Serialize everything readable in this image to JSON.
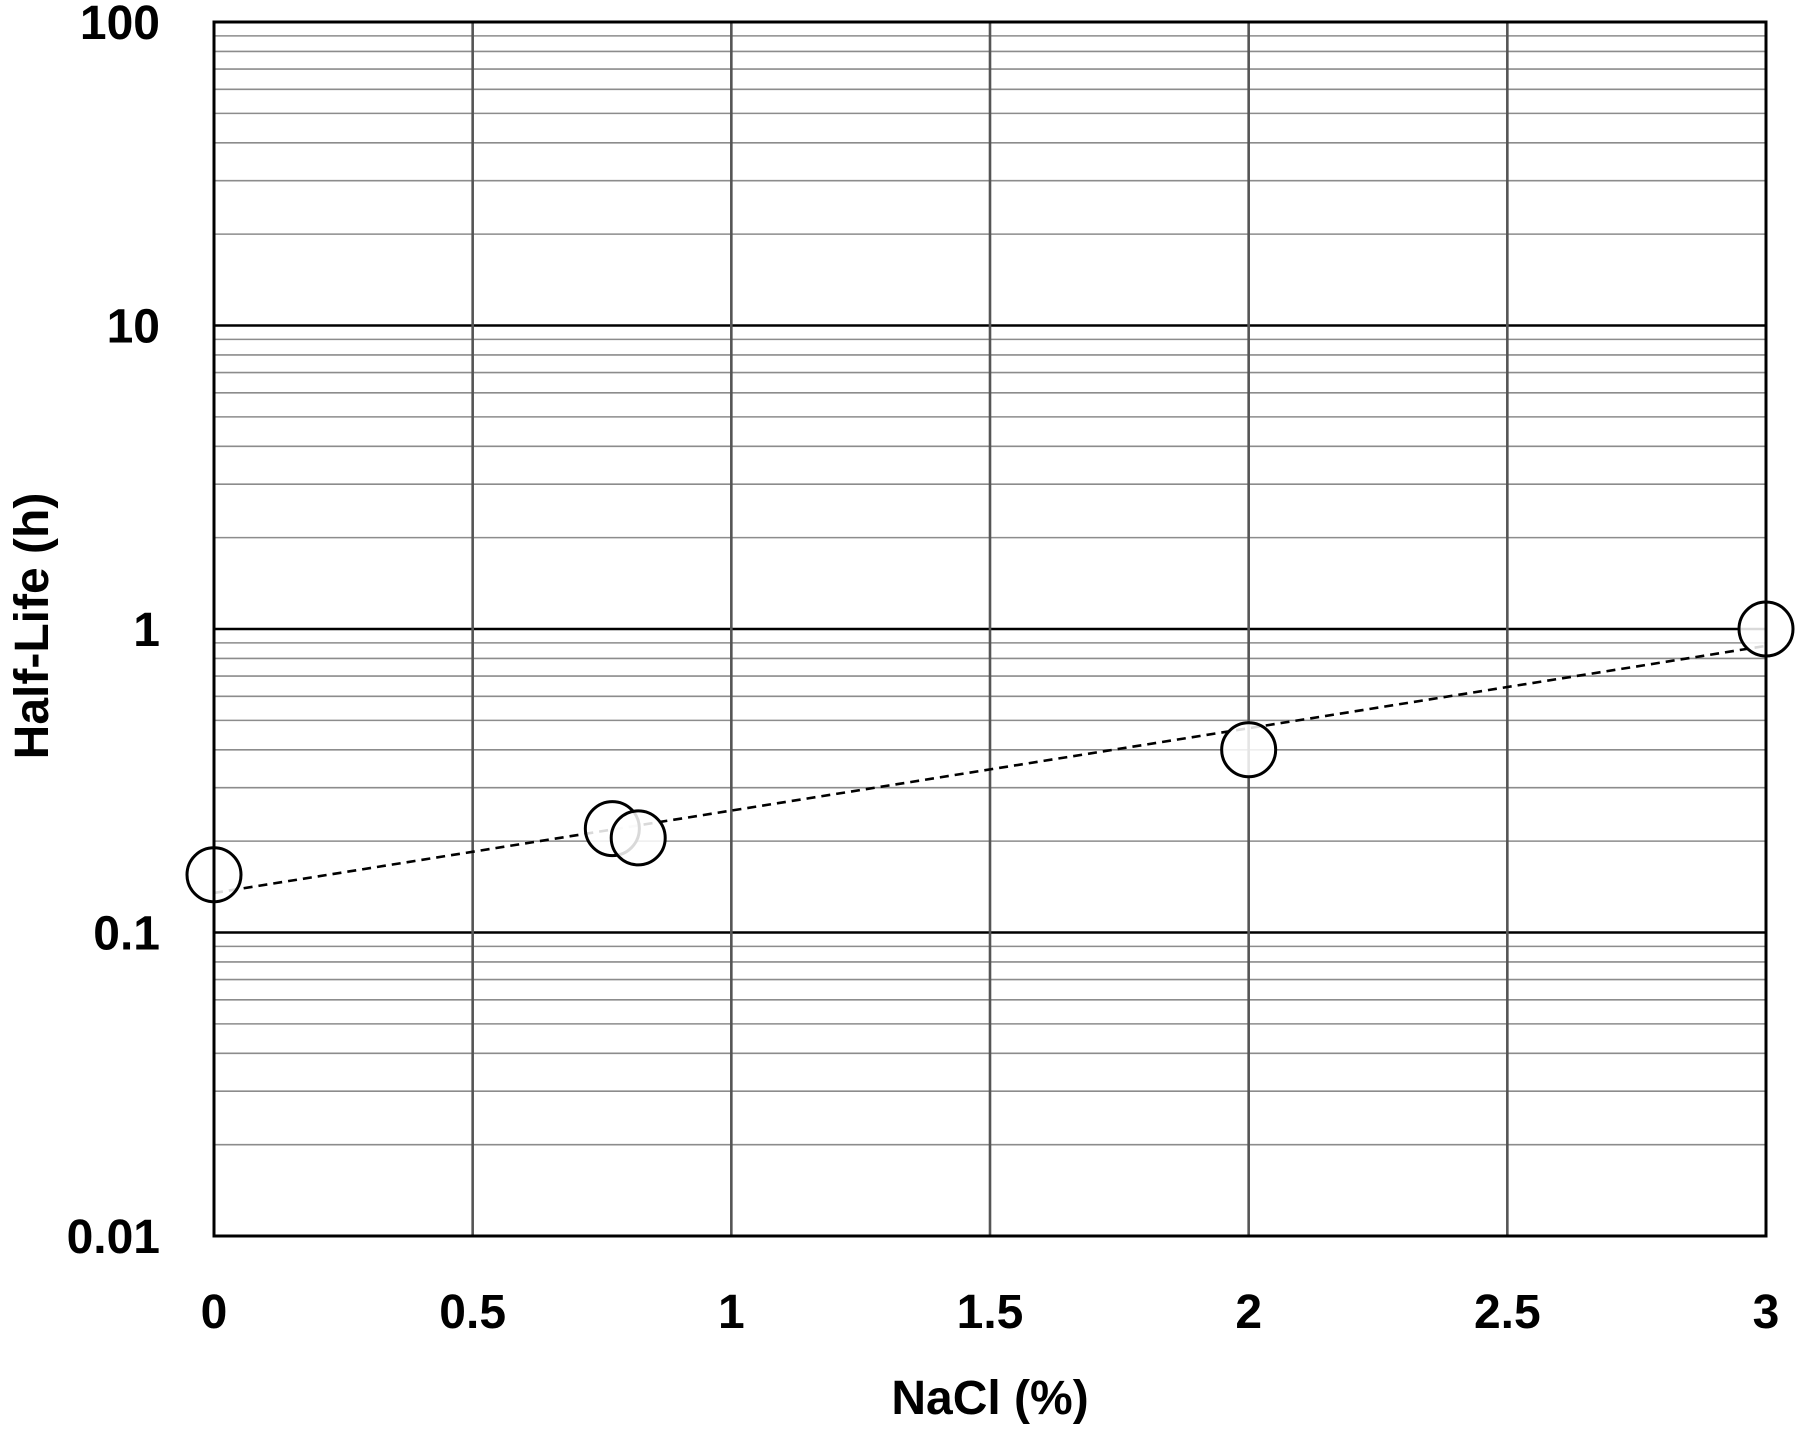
{
  "chart_data": {
    "type": "scatter",
    "title": "",
    "xlabel": "NaCl (%)",
    "ylabel": "Half-Life (h)",
    "xlim": [
      0,
      3
    ],
    "ylim": [
      0.01,
      100
    ],
    "yscale": "log",
    "x_ticks": [
      {
        "value": 0,
        "label": "0"
      },
      {
        "value": 0.5,
        "label": "0.5"
      },
      {
        "value": 1,
        "label": "1"
      },
      {
        "value": 1.5,
        "label": "1.5"
      },
      {
        "value": 2,
        "label": "2"
      },
      {
        "value": 2.5,
        "label": "2.5"
      },
      {
        "value": 3,
        "label": "3"
      }
    ],
    "y_ticks": [
      {
        "value": 0.01,
        "label": "0.01"
      },
      {
        "value": 0.1,
        "label": "0.1"
      },
      {
        "value": 1,
        "label": "1"
      },
      {
        "value": 10,
        "label": "10"
      },
      {
        "value": 100,
        "label": "100"
      }
    ],
    "grid": {
      "major": true,
      "minor_y": true
    },
    "series": [
      {
        "marker": "open-circle",
        "points": [
          {
            "x": 0,
            "y": 0.155
          },
          {
            "x": 0.77,
            "y": 0.22
          },
          {
            "x": 0.82,
            "y": 0.205
          },
          {
            "x": 2,
            "y": 0.4
          },
          {
            "x": 3,
            "y": 1
          }
        ]
      }
    ],
    "trendline": {
      "style": "dashed",
      "x": [
        0,
        3
      ],
      "y": [
        0.135,
        0.88
      ]
    },
    "colors": {
      "axis": "#000000",
      "major_grid": "#000000",
      "vertical_grid": "#555555",
      "minor_grid": "#8c8c8c",
      "marker_fill": "#ffffff",
      "marker_stroke": "#000000"
    }
  }
}
